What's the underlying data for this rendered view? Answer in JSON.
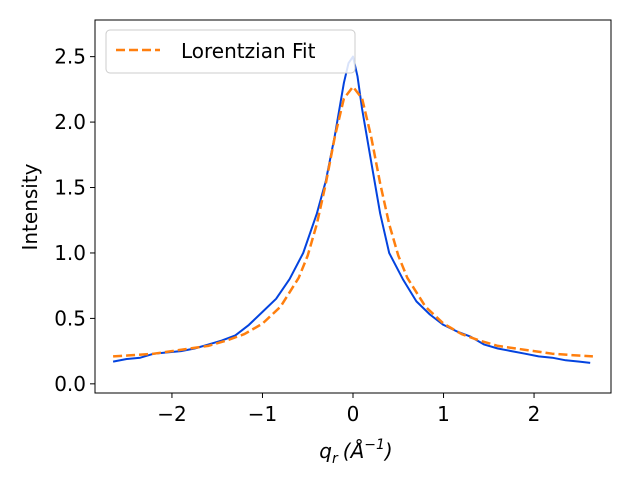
{
  "chart_data": {
    "type": "line",
    "title": "",
    "xlabel_main": "q",
    "xlabel_sub": "r",
    "xlabel_unit": "(Å",
    "xlabel_unit_exp": "−1",
    "xlabel_close": ")",
    "ylabel": "Intensity",
    "xlim": [
      -2.85,
      2.85
    ],
    "ylim": [
      -0.07,
      2.78
    ],
    "xticks": [
      -2,
      -1,
      0,
      1,
      2
    ],
    "xtick_labels": [
      "−2",
      "−1",
      "0",
      "1",
      "2"
    ],
    "yticks": [
      0.0,
      0.5,
      1.0,
      1.5,
      2.0,
      2.5
    ],
    "ytick_labels": [
      "0.0",
      "0.5",
      "1.0",
      "1.5",
      "2.0",
      "2.5"
    ],
    "grid": false,
    "legend_placement": "upper-left",
    "series": [
      {
        "name": "",
        "style": "solid",
        "color": "#0343df",
        "x": [
          -2.65,
          -2.5,
          -2.35,
          -2.2,
          -2.05,
          -1.9,
          -1.75,
          -1.6,
          -1.45,
          -1.3,
          -1.15,
          -1.0,
          -0.85,
          -0.7,
          -0.55,
          -0.4,
          -0.3,
          -0.2,
          -0.1,
          -0.05,
          0.0,
          0.05,
          0.1,
          0.2,
          0.3,
          0.4,
          0.55,
          0.7,
          0.85,
          1.0,
          1.15,
          1.3,
          1.45,
          1.6,
          1.75,
          1.9,
          2.05,
          2.2,
          2.35,
          2.5,
          2.62
        ],
        "y": [
          0.17,
          0.19,
          0.2,
          0.23,
          0.24,
          0.25,
          0.27,
          0.3,
          0.33,
          0.37,
          0.45,
          0.55,
          0.65,
          0.8,
          1.0,
          1.3,
          1.55,
          1.9,
          2.3,
          2.45,
          2.5,
          2.35,
          2.1,
          1.7,
          1.3,
          1.0,
          0.8,
          0.63,
          0.53,
          0.45,
          0.4,
          0.36,
          0.3,
          0.27,
          0.25,
          0.23,
          0.21,
          0.2,
          0.18,
          0.17,
          0.16
        ]
      },
      {
        "name": "Lorentzian Fit",
        "style": "dashed",
        "color": "#ff7f0e",
        "x": [
          -2.65,
          -2.4,
          -2.2,
          -2.0,
          -1.8,
          -1.6,
          -1.4,
          -1.2,
          -1.0,
          -0.8,
          -0.6,
          -0.5,
          -0.4,
          -0.3,
          -0.2,
          -0.1,
          0.0,
          0.1,
          0.2,
          0.3,
          0.4,
          0.5,
          0.6,
          0.8,
          1.0,
          1.2,
          1.4,
          1.6,
          1.8,
          2.0,
          2.2,
          2.4,
          2.65
        ],
        "y": [
          0.21,
          0.22,
          0.23,
          0.25,
          0.27,
          0.29,
          0.33,
          0.38,
          0.46,
          0.59,
          0.81,
          0.98,
          1.22,
          1.53,
          1.89,
          2.18,
          2.27,
          2.18,
          1.89,
          1.53,
          1.22,
          0.98,
          0.81,
          0.59,
          0.46,
          0.38,
          0.33,
          0.29,
          0.27,
          0.25,
          0.23,
          0.22,
          0.21
        ]
      }
    ]
  }
}
